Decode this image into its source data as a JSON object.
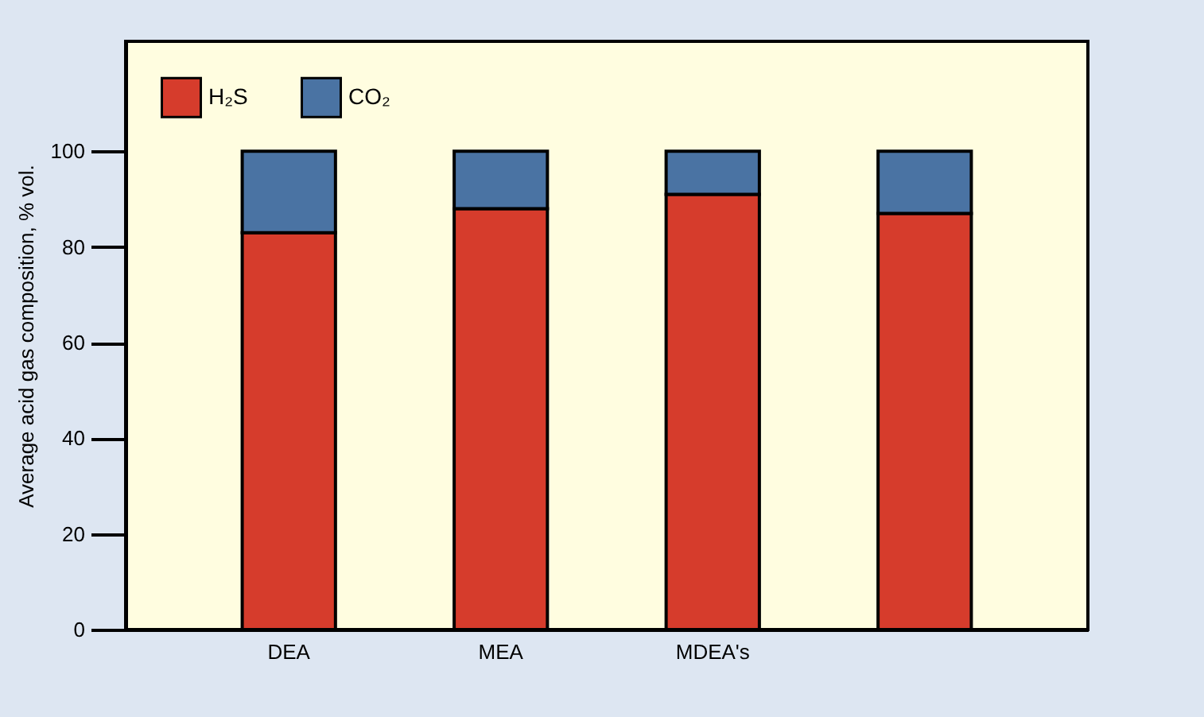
{
  "chart_data": {
    "type": "bar",
    "ylabel": "Average acid gas composition, % vol.",
    "categories": [
      "DEA",
      "MEA",
      "MDEA's",
      null
    ],
    "series": [
      {
        "name": "H₂S",
        "color": "#d63c2c",
        "values": [
          83,
          88,
          91,
          87
        ]
      },
      {
        "name": "CO₂",
        "color": "#4a73a3",
        "values": [
          17,
          12,
          9,
          13
        ]
      }
    ],
    "stacked": true,
    "ylim": [
      0,
      123
    ],
    "yticks": [
      0,
      20,
      40,
      60,
      80,
      100
    ],
    "grid": false,
    "legend": "top left"
  }
}
